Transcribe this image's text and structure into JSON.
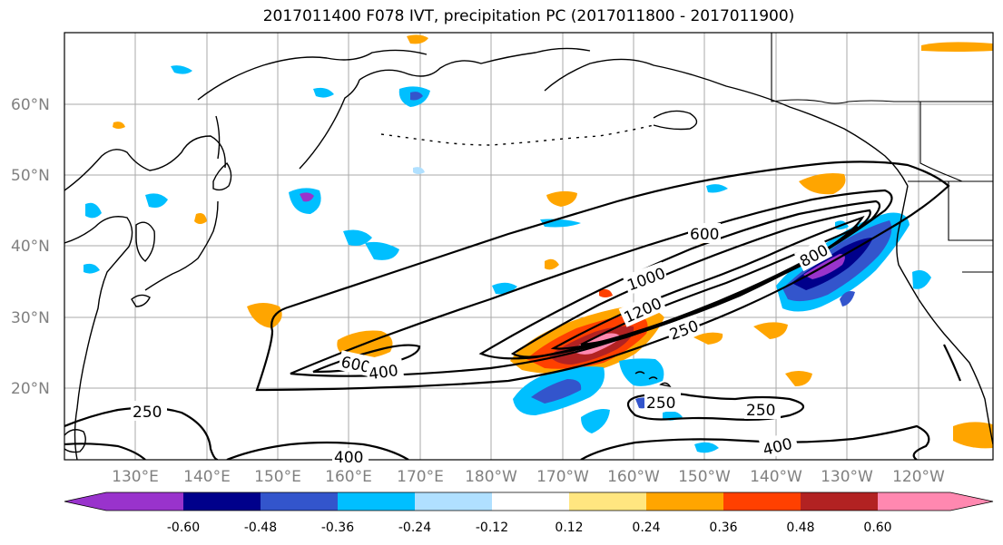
{
  "title": "2017011400 F078 IVT, precipitation PC (2017011800 - 2017011900)",
  "lat_labels": [
    "60°N",
    "50°N",
    "40°N",
    "30°N",
    "20°N"
  ],
  "lon_labels": [
    "130°E",
    "140°E",
    "150°E",
    "160°E",
    "170°E",
    "180°W",
    "170°W",
    "160°W",
    "150°W",
    "140°W",
    "130°W",
    "120°W"
  ],
  "ivt_contour_labels": [
    "600",
    "1000",
    "1200",
    "250",
    "800",
    "600",
    "400",
    "250",
    "250",
    "250",
    "400",
    "400"
  ],
  "colorbar": {
    "tick_labels": [
      "-0.60",
      "-0.48",
      "-0.36",
      "-0.24",
      "-0.12",
      "0.12",
      "0.24",
      "0.36",
      "0.48",
      "0.60"
    ],
    "colors": [
      "#9933cc",
      "#00008b",
      "#3355cc",
      "#00bfff",
      "#b0e0ff",
      "#ffffff",
      "#ffe680",
      "#ffa500",
      "#ff4000",
      "#b22222",
      "#ff88b0"
    ]
  },
  "colors": {
    "coast": "#000000",
    "grid": "#aaaaaa",
    "ivt_contour": "#000000"
  }
}
